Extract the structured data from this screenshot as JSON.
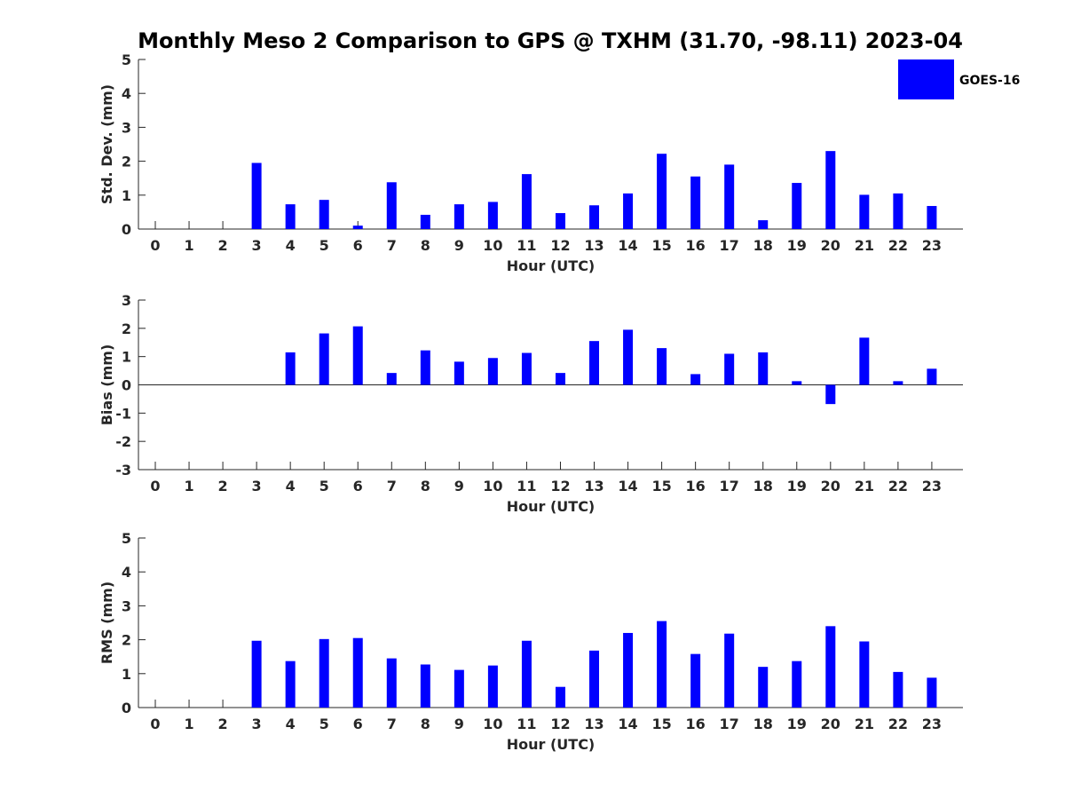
{
  "figure_title": "Monthly Meso 2 Comparison to GPS @ TXHM (31.70, -98.11) 2023-04",
  "legend": {
    "label": "GOES-16",
    "color": "#0000ff"
  },
  "chart_data": [
    {
      "type": "bar",
      "name": "std-dev",
      "ylabel": "Std. Dev. (mm)",
      "xlabel": "Hour (UTC)",
      "ylim": [
        0,
        5
      ],
      "yticks": [
        0,
        1,
        2,
        3,
        4,
        5
      ],
      "categories": [
        0,
        1,
        2,
        3,
        4,
        5,
        6,
        7,
        8,
        9,
        10,
        11,
        12,
        13,
        14,
        15,
        16,
        17,
        18,
        19,
        20,
        21,
        22,
        23
      ],
      "values": [
        0,
        0,
        0,
        1.95,
        0.73,
        0.86,
        0.1,
        1.38,
        0.42,
        0.73,
        0.8,
        1.62,
        0.47,
        0.7,
        1.05,
        2.22,
        1.55,
        1.9,
        0.26,
        1.36,
        2.3,
        1.01,
        1.05,
        0.68
      ],
      "color": "#0000ff"
    },
    {
      "type": "bar",
      "name": "bias",
      "ylabel": "Bias (mm)",
      "xlabel": "Hour (UTC)",
      "ylim": [
        -3,
        3
      ],
      "yticks": [
        -3,
        -2,
        -1,
        0,
        1,
        2,
        3
      ],
      "categories": [
        0,
        1,
        2,
        3,
        4,
        5,
        6,
        7,
        8,
        9,
        10,
        11,
        12,
        13,
        14,
        15,
        16,
        17,
        18,
        19,
        20,
        21,
        22,
        23
      ],
      "values": [
        0,
        0,
        0,
        0,
        1.15,
        1.82,
        2.07,
        0.42,
        1.22,
        0.82,
        0.95,
        1.13,
        0.42,
        1.55,
        1.95,
        1.3,
        0.38,
        1.1,
        1.15,
        0.13,
        -0.68,
        1.67,
        0.13,
        0.57
      ],
      "color": "#0000ff"
    },
    {
      "type": "bar",
      "name": "rms",
      "ylabel": "RMS (mm)",
      "xlabel": "Hour (UTC)",
      "ylim": [
        0,
        5
      ],
      "yticks": [
        0,
        1,
        2,
        3,
        4,
        5
      ],
      "categories": [
        0,
        1,
        2,
        3,
        4,
        5,
        6,
        7,
        8,
        9,
        10,
        11,
        12,
        13,
        14,
        15,
        16,
        17,
        18,
        19,
        20,
        21,
        22,
        23
      ],
      "values": [
        0,
        0,
        0,
        1.97,
        1.37,
        2.02,
        2.05,
        1.45,
        1.27,
        1.11,
        1.24,
        1.97,
        0.61,
        1.68,
        2.2,
        2.55,
        1.58,
        2.18,
        1.2,
        1.37,
        2.4,
        1.95,
        1.05,
        0.88
      ],
      "color": "#0000ff"
    }
  ]
}
